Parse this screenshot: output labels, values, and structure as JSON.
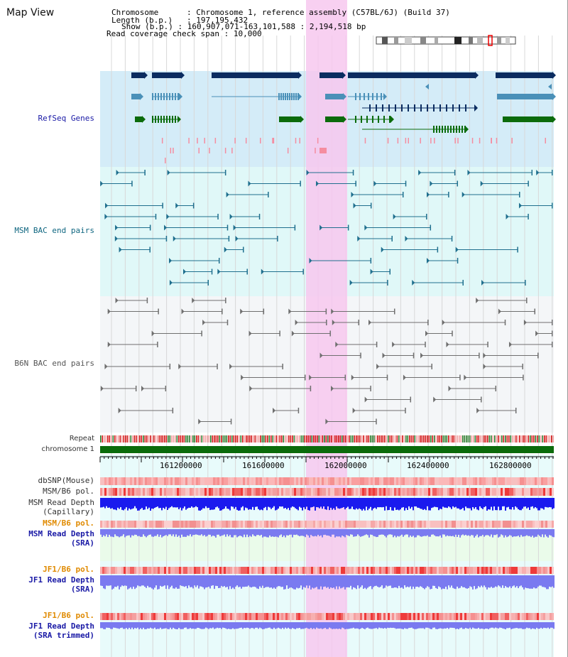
{
  "title": "Map View",
  "info": {
    "chromosome_key": "Chromosome",
    "chromosome_val": "Chromosome 1, reference assembly (C57BL/6J) (Build 37)",
    "length_key": "Length (b.p.)",
    "length_val": "197,195,432",
    "show_key": "Show (b.p.)",
    "show_val": "160,907,071-163,101,588 : 2,194,518 bp",
    "coverage_key": "Read coverage check span",
    "coverage_val": "10,000"
  },
  "tracks": {
    "refseq": "RefSeq Genes",
    "msm_bac": "MSM BAC end pairs",
    "b6n_bac": "B6N BAC end pairs",
    "repeat": "Repeat",
    "chromosome": "chromosome 1",
    "dbsnp": "dbSNP(Mouse)",
    "msm_b6_pol_1": "MSM/B6 pol.",
    "msm_depth_cap_1": "MSM Read Depth",
    "msm_depth_cap_2": "(Capillary)",
    "msm_b6_pol_2": "MSM/B6 pol.",
    "msm_depth_sra_1": "MSM Read Depth",
    "msm_depth_sra_2": "(SRA)",
    "jf1_b6_pol_1": "JF1/B6 pol.",
    "jf1_depth_sra_1": "JF1 Read Depth",
    "jf1_depth_sra_2": "(SRA)",
    "jf1_b6_pol_2": "JF1/B6 pol.",
    "jf1_depth_trim_1": "JF1 Read Depth",
    "jf1_depth_trim_2": "(SRA trimmed)"
  },
  "ruler": {
    "ticks": [
      "161200000",
      "161600000",
      "162000000",
      "162400000",
      "162800000"
    ]
  },
  "colors": {
    "highlight": "#f7c8ee",
    "refseq_bg": "#d4ecf8",
    "bac_bg": "#e0f8f8",
    "b6n_bg": "#f4f6f8",
    "gene_navy": "#0b2c60",
    "gene_steel": "#4a90b8",
    "gene_green": "#0b6b0b",
    "snp_pink": "#f58da0",
    "chrom_green": "#0b6b0b",
    "depth_blue": "#1a1aee",
    "depth_light": "#7a7af0"
  }
}
